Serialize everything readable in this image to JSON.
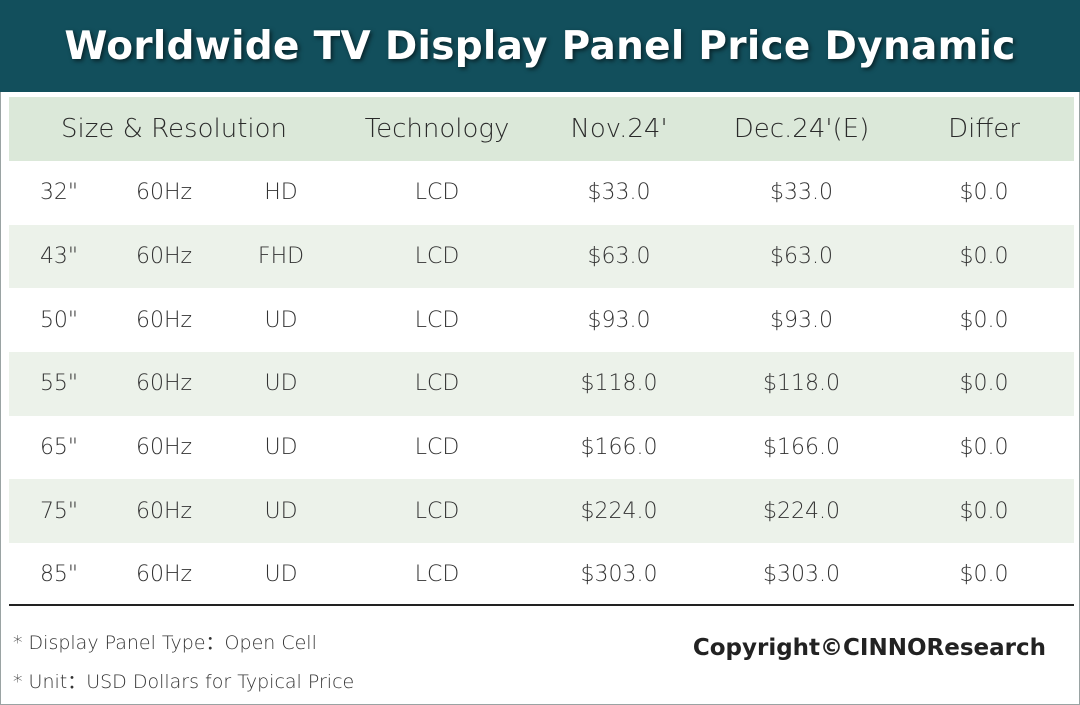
{
  "title": "Worldwide TV Display Panel Price Dynamic",
  "chart_data": {
    "type": "table",
    "columns": [
      "Size & Resolution",
      "Technology",
      "Nov.24'",
      "Dec.24'(E)",
      "Differ"
    ],
    "rows": [
      {
        "size": "32\"",
        "freq": "60Hz",
        "res": "HD",
        "tech": "LCD",
        "nov": "$33.0",
        "dec": "$33.0",
        "differ": "$0.0"
      },
      {
        "size": "43\"",
        "freq": "60Hz",
        "res": "FHD",
        "tech": "LCD",
        "nov": "$63.0",
        "dec": "$63.0",
        "differ": "$0.0"
      },
      {
        "size": "50\"",
        "freq": "60Hz",
        "res": "UD",
        "tech": "LCD",
        "nov": "$93.0",
        "dec": "$93.0",
        "differ": "$0.0"
      },
      {
        "size": "55\"",
        "freq": "60Hz",
        "res": "UD",
        "tech": "LCD",
        "nov": "$118.0",
        "dec": "$118.0",
        "differ": "$0.0"
      },
      {
        "size": "65\"",
        "freq": "60Hz",
        "res": "UD",
        "tech": "LCD",
        "nov": "$166.0",
        "dec": "$166.0",
        "differ": "$0.0"
      },
      {
        "size": "75\"",
        "freq": "60Hz",
        "res": "UD",
        "tech": "LCD",
        "nov": "$224.0",
        "dec": "$224.0",
        "differ": "$0.0"
      },
      {
        "size": "85\"",
        "freq": "60Hz",
        "res": "UD",
        "tech": "LCD",
        "nov": "$303.0",
        "dec": "$303.0",
        "differ": "$0.0"
      }
    ]
  },
  "notes": [
    "* Display Panel Type：Open Cell",
    "* Unit：USD Dollars for Typical Price"
  ],
  "copyright": "Copyright©CINNOResearch",
  "colors": {
    "banner": "#124f5c",
    "header_row": "#dbe8d9",
    "alt_row": "#ecf2ea"
  }
}
